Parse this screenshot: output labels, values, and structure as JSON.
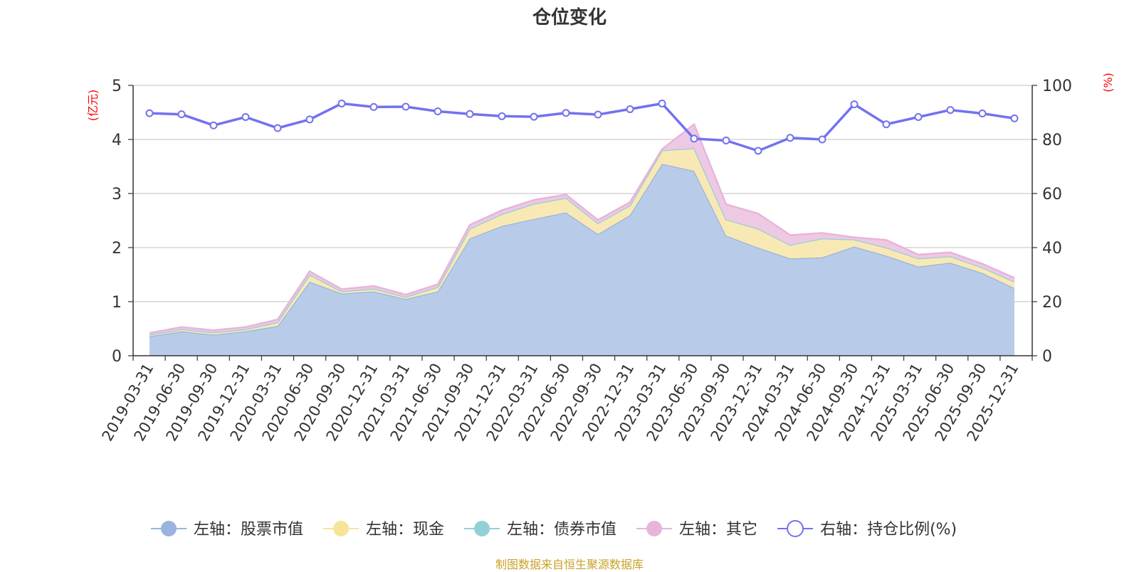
{
  "chart_data": {
    "type": "area",
    "title": "仓位变化",
    "source_note": "制图数据来自恒生聚源数据库",
    "left_axis": {
      "label": "(亿元)",
      "min": 0,
      "max": 5,
      "ticks": [
        0,
        1,
        2,
        3,
        4,
        5
      ]
    },
    "right_axis": {
      "label": "(%)",
      "min": 0,
      "max": 100,
      "ticks": [
        0,
        20,
        40,
        60,
        80,
        100
      ]
    },
    "dates": [
      "2019-03-31",
      "2019-06-30",
      "2019-09-30",
      "2019-12-31",
      "2020-03-31",
      "2020-06-30",
      "2020-09-30",
      "2020-12-31",
      "2021-03-31",
      "2021-06-30",
      "2021-09-30",
      "2021-12-31",
      "2022-03-31",
      "2022-06-30",
      "2022-09-30",
      "2022-12-31",
      "2023-03-31",
      "2023-06-30",
      "2023-09-30",
      "2023-12-31",
      "2024-03-31",
      "2024-06-30",
      "2024-09-30",
      "2024-12-31",
      "2025-03-31",
      "2025-06-30",
      "2025-09-30",
      "2025-12-31"
    ],
    "series": [
      {
        "name": "左轴：股票市值",
        "axis": "left",
        "stack": true,
        "color": "#9ab4de",
        "fill": "#b8cce9",
        "values": [
          0.36,
          0.45,
          0.39,
          0.45,
          0.55,
          1.37,
          1.15,
          1.19,
          1.05,
          1.19,
          2.17,
          2.4,
          2.53,
          2.65,
          2.25,
          2.6,
          3.55,
          3.42,
          2.22,
          2.0,
          1.8,
          1.82,
          2.02,
          1.85,
          1.65,
          1.72,
          1.53,
          1.25
        ]
      },
      {
        "name": "左轴：现金",
        "axis": "left",
        "stack": true,
        "color": "#f7e49a",
        "fill": "#f8e9b4",
        "values": [
          0.03,
          0.04,
          0.04,
          0.04,
          0.07,
          0.13,
          0.04,
          0.05,
          0.04,
          0.08,
          0.18,
          0.22,
          0.28,
          0.27,
          0.2,
          0.18,
          0.25,
          0.42,
          0.3,
          0.35,
          0.25,
          0.35,
          0.13,
          0.15,
          0.15,
          0.12,
          0.1,
          0.12
        ]
      },
      {
        "name": "左轴：债券市值",
        "axis": "left",
        "stack": true,
        "color": "#93d0d6",
        "fill": "#a9dbdf",
        "values": [
          0,
          0,
          0,
          0,
          0,
          0,
          0,
          0,
          0,
          0,
          0,
          0,
          0,
          0,
          0,
          0,
          0,
          0,
          0,
          0,
          0,
          0,
          0,
          0,
          0,
          0,
          0,
          0
        ]
      },
      {
        "name": "左轴：其它",
        "axis": "left",
        "stack": true,
        "color": "#e7b5da",
        "fill": "#eec9e4",
        "values": [
          0.03,
          0.04,
          0.04,
          0.04,
          0.05,
          0.06,
          0.04,
          0.05,
          0.04,
          0.05,
          0.07,
          0.07,
          0.07,
          0.06,
          0.06,
          0.06,
          0.02,
          0.44,
          0.28,
          0.28,
          0.18,
          0.1,
          0.04,
          0.14,
          0.07,
          0.07,
          0.07,
          0.07
        ]
      },
      {
        "name": "右轴：持仓比例(%)",
        "axis": "right",
        "stack": false,
        "color": "#7272f0",
        "values": [
          89.7,
          89.3,
          85.2,
          88.3,
          84.2,
          87.4,
          93.3,
          92.0,
          92.1,
          90.4,
          89.4,
          88.6,
          88.4,
          89.8,
          89.2,
          91.2,
          93.3,
          80.3,
          79.6,
          75.8,
          80.6,
          80.0,
          93.0,
          85.6,
          88.3,
          90.9,
          89.6,
          87.8
        ]
      }
    ]
  }
}
